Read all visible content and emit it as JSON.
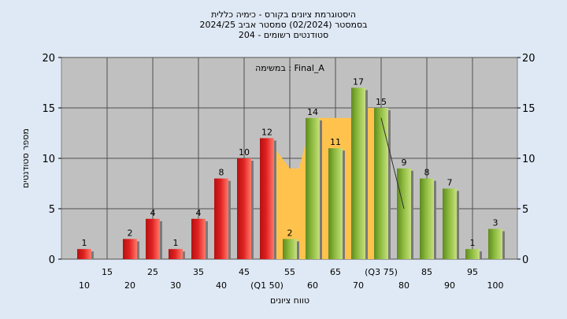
{
  "chart_data": {
    "type": "bar",
    "title_lines": [
      "היסטוגרמת ציונים בקורס - כימיה כללית",
      "בסמסטר  (02/2024)  סמסטר אביב 2024/25",
      "סטודנטים רשומים - 204"
    ],
    "annotation": "במשימה : Final_A",
    "xlabel": "טווח ציונים",
    "ylabel": "מספר סטודנטים",
    "ylim": [
      0,
      20
    ],
    "y_ticks": [
      0,
      5,
      10,
      15,
      20
    ],
    "x_tick_labels": [
      {
        "x": 10,
        "label": "10"
      },
      {
        "x": 15,
        "label": "15"
      },
      {
        "x": 20,
        "label": "20"
      },
      {
        "x": 25,
        "label": "25"
      },
      {
        "x": 30,
        "label": "30"
      },
      {
        "x": 35,
        "label": "35"
      },
      {
        "x": 40,
        "label": "40"
      },
      {
        "x": 45,
        "label": "45"
      },
      {
        "x": 50,
        "label": "(Q1 50)"
      },
      {
        "x": 55,
        "label": "55"
      },
      {
        "x": 60,
        "label": "60"
      },
      {
        "x": 65,
        "label": "65"
      },
      {
        "x": 70,
        "label": "70"
      },
      {
        "x": 75,
        "label": "(Q3 75)"
      },
      {
        "x": 80,
        "label": "80"
      },
      {
        "x": 85,
        "label": "85"
      },
      {
        "x": 90,
        "label": "90"
      },
      {
        "x": 95,
        "label": "95"
      },
      {
        "x": 100,
        "label": "100"
      }
    ],
    "bars": [
      {
        "x": 10,
        "value": 1,
        "color": "red"
      },
      {
        "x": 20,
        "value": 2,
        "color": "red"
      },
      {
        "x": 25,
        "value": 4,
        "color": "red"
      },
      {
        "x": 30,
        "value": 1,
        "color": "red"
      },
      {
        "x": 35,
        "value": 4,
        "color": "red"
      },
      {
        "x": 40,
        "value": 8,
        "color": "red"
      },
      {
        "x": 45,
        "value": 10,
        "color": "red"
      },
      {
        "x": 50,
        "value": 12,
        "color": "red"
      },
      {
        "x": 55,
        "value": 2,
        "color": "green"
      },
      {
        "x": 60,
        "value": 14,
        "color": "green"
      },
      {
        "x": 65,
        "value": 11,
        "color": "green"
      },
      {
        "x": 70,
        "value": 17,
        "color": "green"
      },
      {
        "x": 75,
        "value": 15,
        "color": "green"
      },
      {
        "x": 80,
        "value": 9,
        "color": "green"
      },
      {
        "x": 85,
        "value": 8,
        "color": "green"
      },
      {
        "x": 90,
        "value": 7,
        "color": "green"
      },
      {
        "x": 95,
        "value": 1,
        "color": "green"
      },
      {
        "x": 100,
        "value": 3,
        "color": "green"
      }
    ],
    "iqr_band": [
      {
        "x": 50,
        "value": 12
      },
      {
        "x": 55,
        "value": 9
      },
      {
        "x": 57,
        "value": 9
      },
      {
        "x": 60,
        "value": 14
      },
      {
        "x": 63,
        "value": 14
      },
      {
        "x": 65,
        "value": 14
      },
      {
        "x": 70,
        "value": 14
      },
      {
        "x": 72,
        "value": 15
      },
      {
        "x": 75,
        "value": 15
      }
    ],
    "trend_line": [
      {
        "x": 75,
        "value": 14
      },
      {
        "x": 80,
        "value": 5
      }
    ],
    "colors": {
      "background": "#dfe9f5",
      "plot_area": "#c0c0c0",
      "red_bar": "#e02020",
      "green_bar": "#8dbb3e",
      "iqr_band": "#ffc34d"
    },
    "grid": true
  }
}
